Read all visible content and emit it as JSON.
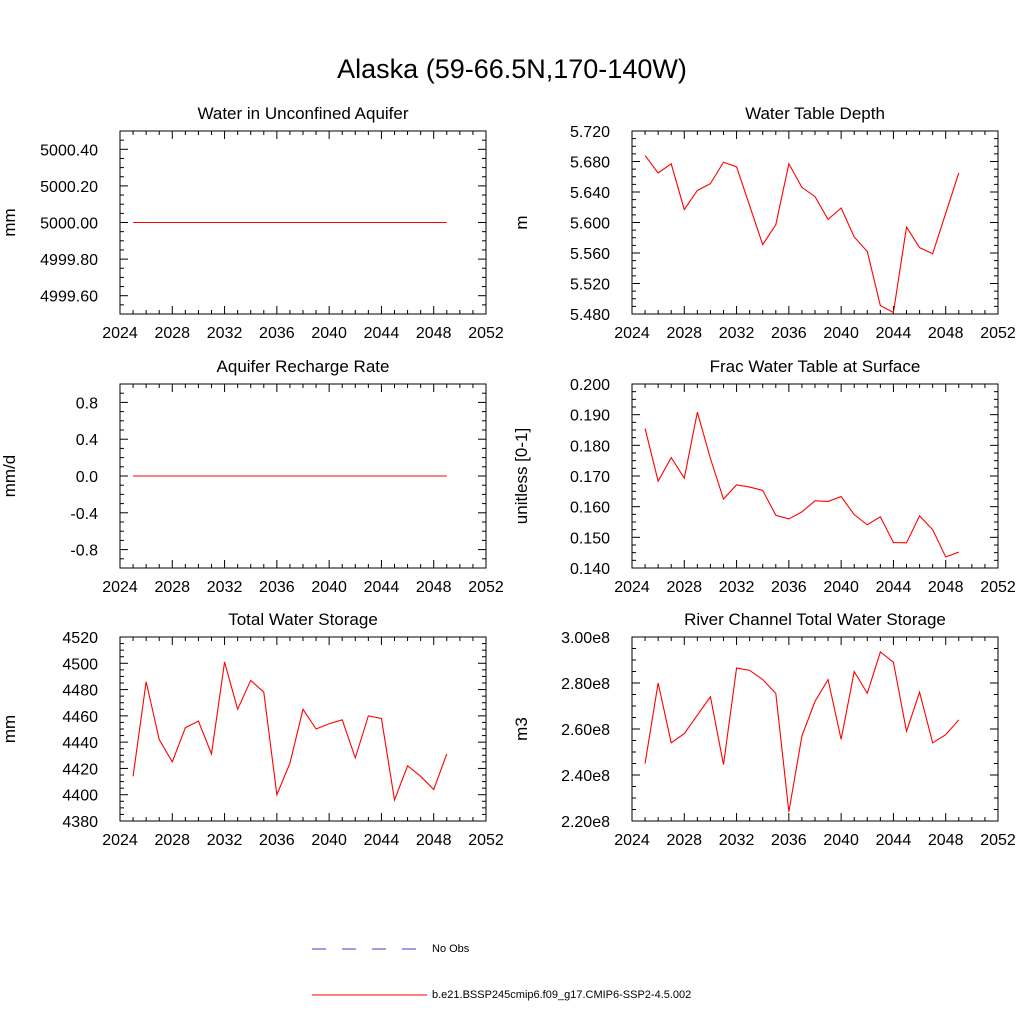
{
  "title": "Alaska (59-66.5N,170-140W)",
  "legend": {
    "obs_label": "No Obs",
    "model_label": "b.e21.BSSP245cmip6.f09_g17.CMIP6-SSP2-4.5.002",
    "obs_color": "#3c3ccc",
    "model_color": "#ff0000"
  },
  "chart_data": [
    {
      "type": "line",
      "title": "Water in Unconfined Aquifer",
      "ylabel": "mm",
      "xlim": [
        2024,
        2052
      ],
      "ylim": [
        4999.5,
        5000.5
      ],
      "xticks": [
        2024,
        2028,
        2032,
        2036,
        2040,
        2044,
        2048,
        2052
      ],
      "xtick_labels": [
        "2024",
        "2028",
        "2032",
        "2036",
        "2040",
        "2044",
        "2048",
        "2052"
      ],
      "yticks": [
        4999.6,
        4999.8,
        5000.0,
        5000.2,
        5000.4
      ],
      "ytick_labels": [
        "4999.60",
        "4999.80",
        "5000.00",
        "5000.20",
        "5000.40"
      ],
      "series": [
        {
          "name": "b.e21.BSSP245cmip6.f09_g17.CMIP6-SSP2-4.5.002",
          "x": [
            2025,
            2026,
            2027,
            2028,
            2029,
            2030,
            2031,
            2032,
            2033,
            2034,
            2035,
            2036,
            2037,
            2038,
            2039,
            2040,
            2041,
            2042,
            2043,
            2044,
            2045,
            2046,
            2047,
            2048,
            2049
          ],
          "y": [
            5000,
            5000,
            5000,
            5000,
            5000,
            5000,
            5000,
            5000,
            5000,
            5000,
            5000,
            5000,
            5000,
            5000,
            5000,
            5000,
            5000,
            5000,
            5000,
            5000,
            5000,
            5000,
            5000,
            5000,
            5000
          ]
        }
      ]
    },
    {
      "type": "line",
      "title": "Water Table Depth",
      "ylabel": "m",
      "xlim": [
        2024,
        2052
      ],
      "ylim": [
        5.48,
        5.72
      ],
      "xticks": [
        2024,
        2028,
        2032,
        2036,
        2040,
        2044,
        2048,
        2052
      ],
      "xtick_labels": [
        "2024",
        "2028",
        "2032",
        "2036",
        "2040",
        "2044",
        "2048",
        "2052"
      ],
      "yticks": [
        5.48,
        5.52,
        5.56,
        5.6,
        5.64,
        5.68,
        5.72
      ],
      "ytick_labels": [
        "5.480",
        "5.520",
        "5.560",
        "5.600",
        "5.640",
        "5.680",
        "5.720"
      ],
      "series": [
        {
          "name": "b.e21.BSSP245cmip6.f09_g17.CMIP6-SSP2-4.5.002",
          "x": [
            2025,
            2026,
            2027,
            2028,
            2029,
            2030,
            2031,
            2032,
            2033,
            2034,
            2035,
            2036,
            2037,
            2038,
            2039,
            2040,
            2041,
            2042,
            2043,
            2044,
            2045,
            2046,
            2047,
            2048,
            2049
          ],
          "y": [
            5.688,
            5.665,
            5.677,
            5.617,
            5.642,
            5.651,
            5.679,
            5.673,
            5.622,
            5.571,
            5.597,
            5.677,
            5.646,
            5.634,
            5.604,
            5.619,
            5.581,
            5.562,
            5.491,
            5.482,
            5.594,
            5.567,
            5.559,
            5.612,
            5.665
          ]
        }
      ]
    },
    {
      "type": "line",
      "title": "Aquifer Recharge Rate",
      "ylabel": "mm/d",
      "xlim": [
        2024,
        2052
      ],
      "ylim": [
        -1.0,
        1.0
      ],
      "xticks": [
        2024,
        2028,
        2032,
        2036,
        2040,
        2044,
        2048,
        2052
      ],
      "xtick_labels": [
        "2024",
        "2028",
        "2032",
        "2036",
        "2040",
        "2044",
        "2048",
        "2052"
      ],
      "yticks": [
        -0.8,
        -0.4,
        0.0,
        0.4,
        0.8
      ],
      "ytick_labels": [
        "-0.8",
        "-0.4",
        "0.0",
        "0.4",
        "0.8"
      ],
      "series": [
        {
          "name": "b.e21.BSSP245cmip6.f09_g17.CMIP6-SSP2-4.5.002",
          "x": [
            2025,
            2026,
            2027,
            2028,
            2029,
            2030,
            2031,
            2032,
            2033,
            2034,
            2035,
            2036,
            2037,
            2038,
            2039,
            2040,
            2041,
            2042,
            2043,
            2044,
            2045,
            2046,
            2047,
            2048,
            2049
          ],
          "y": [
            0,
            0,
            0,
            0,
            0,
            0,
            0,
            0,
            0,
            0,
            0,
            0,
            0,
            0,
            0,
            0,
            0,
            0,
            0,
            0,
            0,
            0,
            0,
            0,
            0
          ]
        }
      ]
    },
    {
      "type": "line",
      "title": "Frac Water Table at Surface",
      "ylabel": "unitless [0-1]",
      "xlim": [
        2024,
        2052
      ],
      "ylim": [
        0.14,
        0.2
      ],
      "xticks": [
        2024,
        2028,
        2032,
        2036,
        2040,
        2044,
        2048,
        2052
      ],
      "xtick_labels": [
        "2024",
        "2028",
        "2032",
        "2036",
        "2040",
        "2044",
        "2048",
        "2052"
      ],
      "yticks": [
        0.14,
        0.15,
        0.16,
        0.17,
        0.18,
        0.19,
        0.2
      ],
      "ytick_labels": [
        "0.140",
        "0.150",
        "0.160",
        "0.170",
        "0.180",
        "0.190",
        "0.200"
      ],
      "series": [
        {
          "name": "b.e21.BSSP245cmip6.f09_g17.CMIP6-SSP2-4.5.002",
          "x": [
            2025,
            2026,
            2027,
            2028,
            2029,
            2030,
            2031,
            2032,
            2033,
            2034,
            2035,
            2036,
            2037,
            2038,
            2039,
            2040,
            2041,
            2042,
            2043,
            2044,
            2045,
            2046,
            2047,
            2048,
            2049
          ],
          "y": [
            0.1855,
            0.1683,
            0.176,
            0.1693,
            0.1908,
            0.1757,
            0.1625,
            0.1671,
            0.1664,
            0.1653,
            0.1572,
            0.156,
            0.1583,
            0.1619,
            0.1617,
            0.1633,
            0.1574,
            0.1541,
            0.1567,
            0.1483,
            0.1482,
            0.157,
            0.1525,
            0.1436,
            0.1452
          ]
        }
      ]
    },
    {
      "type": "line",
      "title": "Total Water Storage",
      "ylabel": "mm",
      "xlim": [
        2024,
        2052
      ],
      "ylim": [
        4380,
        4520
      ],
      "xticks": [
        2024,
        2028,
        2032,
        2036,
        2040,
        2044,
        2048,
        2052
      ],
      "xtick_labels": [
        "2024",
        "2028",
        "2032",
        "2036",
        "2040",
        "2044",
        "2048",
        "2052"
      ],
      "yticks": [
        4380,
        4400,
        4420,
        4440,
        4460,
        4480,
        4500,
        4520
      ],
      "ytick_labels": [
        "4380",
        "4400",
        "4420",
        "4440",
        "4460",
        "4480",
        "4500",
        "4520"
      ],
      "series": [
        {
          "name": "b.e21.BSSP245cmip6.f09_g17.CMIP6-SSP2-4.5.002",
          "x": [
            2025,
            2026,
            2027,
            2028,
            2029,
            2030,
            2031,
            2032,
            2033,
            2034,
            2035,
            2036,
            2037,
            2038,
            2039,
            2040,
            2041,
            2042,
            2043,
            2044,
            2045,
            2046,
            2047,
            2048,
            2049
          ],
          "y": [
            4414,
            4486,
            4442,
            4425,
            4451,
            4456,
            4431,
            4501,
            4465,
            4487,
            4478,
            4400,
            4424,
            4465,
            4450,
            4454,
            4457,
            4428,
            4460,
            4458,
            4396,
            4422,
            4414,
            4404,
            4431
          ]
        }
      ]
    },
    {
      "type": "line",
      "title": "River Channel Total Water Storage",
      "ylabel": "m3",
      "xlim": [
        2024,
        2052
      ],
      "ylim": [
        220000000,
        300000000
      ],
      "xticks": [
        2024,
        2028,
        2032,
        2036,
        2040,
        2044,
        2048,
        2052
      ],
      "xtick_labels": [
        "2024",
        "2028",
        "2032",
        "2036",
        "2040",
        "2044",
        "2048",
        "2052"
      ],
      "yticks": [
        220000000,
        240000000,
        260000000,
        280000000,
        300000000
      ],
      "ytick_labels": [
        "2.20e8",
        "2.40e8",
        "2.60e8",
        "2.80e8",
        "3.00e8"
      ],
      "series": [
        {
          "name": "b.e21.BSSP245cmip6.f09_g17.CMIP6-SSP2-4.5.002",
          "x": [
            2025,
            2026,
            2027,
            2028,
            2029,
            2030,
            2031,
            2032,
            2033,
            2034,
            2035,
            2036,
            2037,
            2038,
            2039,
            2040,
            2041,
            2042,
            2043,
            2044,
            2045,
            2046,
            2047,
            2048,
            2049
          ],
          "y": [
            245000000,
            280000000,
            254000000,
            258000000,
            266000000,
            274000000,
            244500000,
            286500000,
            285500000,
            281500000,
            275500000,
            224000000,
            257000000,
            272000000,
            281500000,
            255500000,
            285000000,
            275500000,
            293500000,
            289000000,
            259000000,
            276000000,
            254000000,
            257500000,
            264000000
          ]
        }
      ]
    }
  ]
}
